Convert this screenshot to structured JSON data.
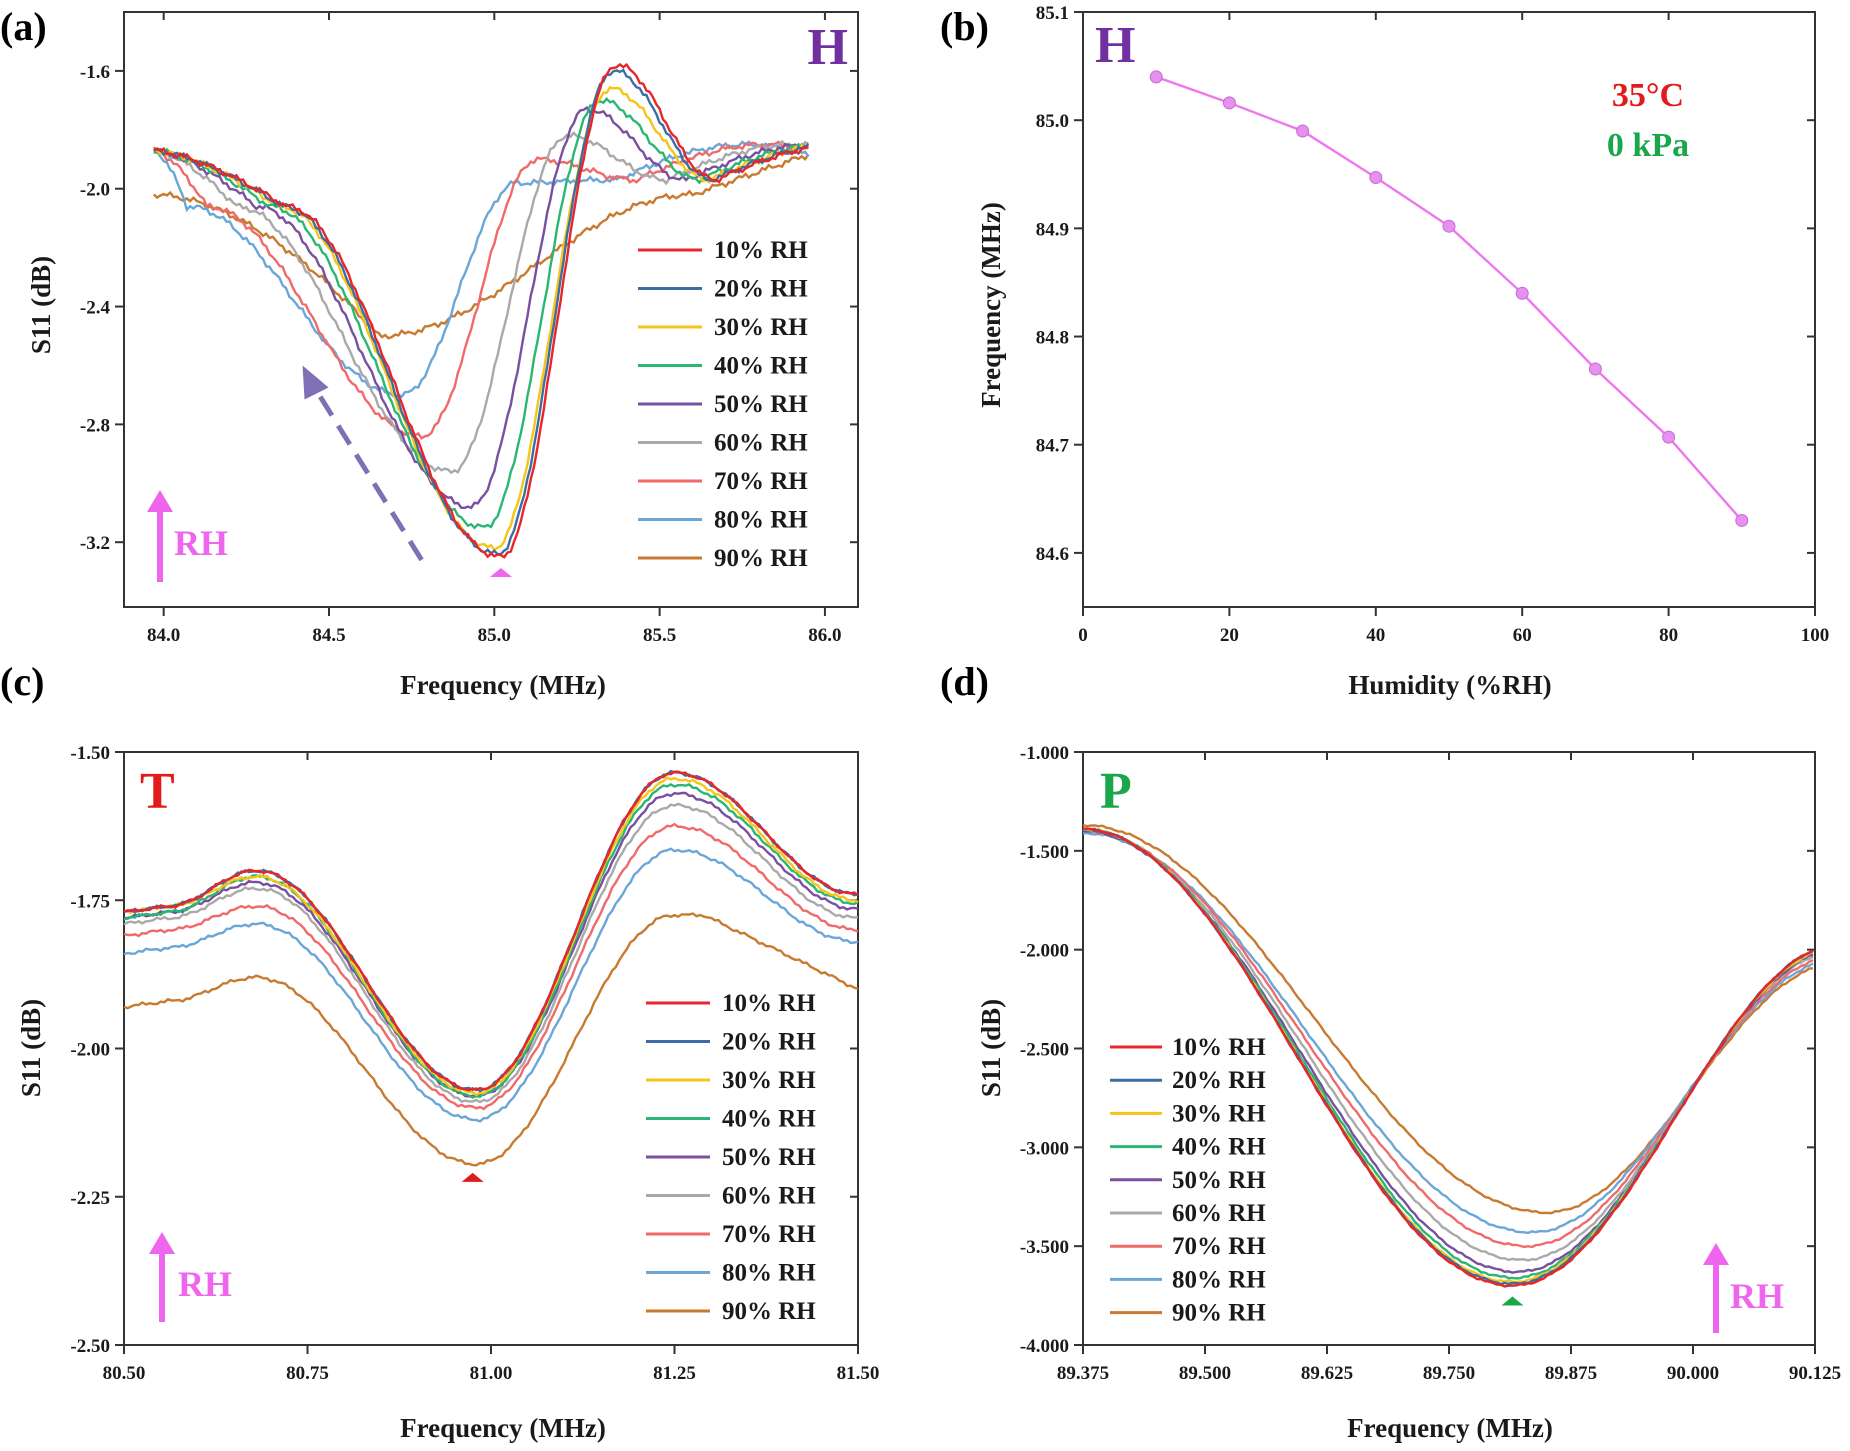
{
  "series_colors": [
    "#e8262a",
    "#3a6ea5",
    "#f5c518",
    "#2bb673",
    "#7a4fa0",
    "#a9a9a9",
    "#f06a6a",
    "#6aa6d8",
    "#c87a30"
  ],
  "legend_labels": [
    "10% RH",
    "20% RH",
    "30% RH",
    "40% RH",
    "50% RH",
    "60% RH",
    "70% RH",
    "80% RH",
    "90% RH"
  ],
  "arrow_color": "#ee66ee",
  "rh_arrow_text": "RH",
  "chart_data": [
    {
      "panel": "(a)",
      "badge": "H",
      "badge_color": "#7030a0",
      "type": "line",
      "xlabel": "Frequency (MHz)",
      "ylabel": "S11 (dB)",
      "xlim": [
        83.88,
        86.1
      ],
      "ylim": [
        -3.42,
        -1.4
      ],
      "xticks": [
        84.0,
        84.5,
        85.0,
        85.5,
        86.0
      ],
      "yticks": [
        -3.2,
        -2.8,
        -2.4,
        -2.0,
        -1.6
      ],
      "tick_decimals": 1,
      "marker_x": 85.02,
      "marker_color": "#ee66ee",
      "dashed_arrow": {
        "from": [
          84.78,
          -3.26
        ],
        "to": [
          84.42,
          -2.6
        ],
        "color": "#7f6fb5"
      },
      "legend_position": "lower-right",
      "series_params": {
        "start": -1.87,
        "end": -1.95,
        "f0": [
          85.02,
          85.01,
          85.0,
          84.97,
          84.93,
          84.87,
          84.78,
          84.72,
          84.65
        ],
        "depth": [
          -3.25,
          -3.24,
          -3.22,
          -3.15,
          -3.08,
          -2.96,
          -2.84,
          -2.7,
          -2.5
        ],
        "peak": [
          -1.58,
          -1.6,
          -1.66,
          -1.7,
          -1.73,
          -1.82,
          -1.9,
          -1.98,
          -2.1
        ]
      }
    },
    {
      "panel": "(b)",
      "badge": "H",
      "badge_color": "#7030a0",
      "type": "line",
      "xlabel": "Humidity (%RH)",
      "ylabel": "Frequency (MHz)",
      "xlim": [
        0,
        100
      ],
      "ylim": [
        84.55,
        85.1
      ],
      "xticks": [
        0,
        20,
        40,
        60,
        80,
        100
      ],
      "yticks": [
        84.6,
        84.7,
        84.8,
        84.9,
        85.0,
        85.1
      ],
      "tick_decimals": 1,
      "series": [
        {
          "x": [
            10,
            20,
            30,
            40,
            50,
            60,
            70,
            80,
            90
          ],
          "y": [
            85.04,
            85.016,
            84.99,
            84.947,
            84.902,
            84.84,
            84.77,
            84.707,
            84.63
          ],
          "color": "#ee77ee"
        }
      ],
      "annotations": [
        {
          "text": "35°C",
          "color": "#e31a1c"
        },
        {
          "text": "0 kPa",
          "color": "#1aa64a"
        }
      ]
    },
    {
      "panel": "(c)",
      "badge": "T",
      "badge_color": "#e31a1c",
      "type": "line",
      "xlabel": "Frequency (MHz)",
      "ylabel": "S11 (dB)",
      "xlim": [
        80.5,
        81.5
      ],
      "ylim": [
        -2.5,
        -1.5
      ],
      "xticks": [
        80.5,
        80.75,
        81.0,
        81.25,
        81.5
      ],
      "yticks": [
        -2.5,
        -2.25,
        -2.0,
        -1.75,
        -1.5
      ],
      "tick_decimals": 2,
      "marker_x": 80.975,
      "marker_color": "#e31a1c",
      "legend_position": "lower-right",
      "series_params": {
        "start": [
          -1.77,
          -1.77,
          -1.77,
          -1.78,
          -1.78,
          -1.79,
          -1.81,
          -1.84,
          -1.93
        ],
        "base": [
          -1.7,
          -1.7,
          -1.71,
          -1.71,
          -1.72,
          -1.73,
          -1.76,
          -1.79,
          -1.88
        ],
        "min": [
          -2.07,
          -2.07,
          -2.075,
          -2.08,
          -2.08,
          -2.09,
          -2.1,
          -2.12,
          -2.195
        ],
        "peak": [
          -1.535,
          -1.535,
          -1.545,
          -1.555,
          -1.57,
          -1.59,
          -1.625,
          -1.665,
          -1.775
        ],
        "end": [
          -1.74,
          -1.74,
          -1.75,
          -1.755,
          -1.765,
          -1.78,
          -1.8,
          -1.82,
          -1.9
        ]
      }
    },
    {
      "panel": "(d)",
      "badge": "P",
      "badge_color": "#1aa64a",
      "type": "line",
      "xlabel": "Frequency (MHz)",
      "ylabel": "S11 (dB)",
      "xlim": [
        89.375,
        90.125
      ],
      "ylim": [
        -4.0,
        -1.0
      ],
      "xticks": [
        89.375,
        89.5,
        89.625,
        89.75,
        89.875,
        90.0,
        90.125
      ],
      "yticks": [
        -4.0,
        -3.5,
        -3.0,
        -2.5,
        -2.0,
        -1.5,
        -1.0
      ],
      "tick_decimals": 3,
      "marker_x": 89.815,
      "marker_color": "#1aa64a",
      "legend_position": "lower-left",
      "series_params": {
        "start": [
          -1.39,
          -1.39,
          -1.39,
          -1.39,
          -1.4,
          -1.4,
          -1.4,
          -1.41,
          -1.37
        ],
        "min": [
          -3.7,
          -3.69,
          -3.68,
          -3.66,
          -3.63,
          -3.57,
          -3.5,
          -3.43,
          -3.33
        ],
        "xmin": [
          89.815,
          89.815,
          89.815,
          89.817,
          89.82,
          89.825,
          89.83,
          89.835,
          89.85
        ],
        "end": [
          -2.0,
          -2.0,
          -2.01,
          -2.01,
          -2.02,
          -2.03,
          -2.05,
          -2.07,
          -2.09
        ]
      }
    }
  ]
}
